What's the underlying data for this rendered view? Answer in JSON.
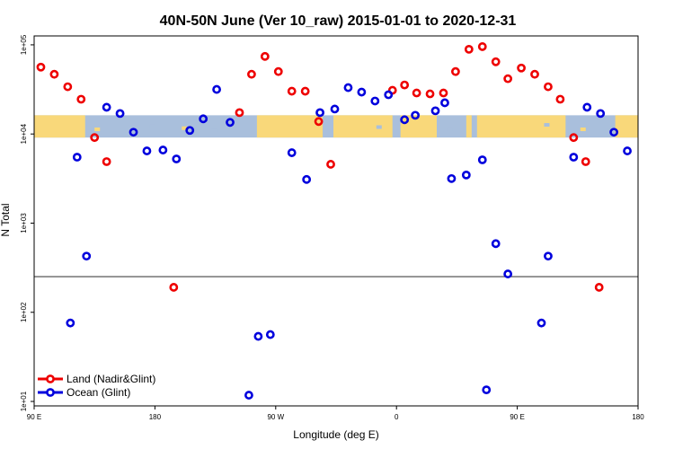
{
  "chart_data": {
    "type": "scatter",
    "title": "40N-50N June (Ver 10_raw)   2015-01-01 to 2020-12-31",
    "xlabel": "Longitude (deg E)",
    "ylabel": "N Total",
    "x_axis_note": "longitude running 90 E -> 180 -> 90 W -> 0 -> 90 E -> 180",
    "xlim": [
      90,
      540
    ],
    "xticks": [
      {
        "x": 90,
        "label": "90 E"
      },
      {
        "x": 180,
        "label": "180"
      },
      {
        "x": 270,
        "label": "90 W"
      },
      {
        "x": 360,
        "label": "0"
      },
      {
        "x": 450,
        "label": "90 E"
      },
      {
        "x": 540,
        "label": "180"
      }
    ],
    "y_scale": "log10",
    "ylim_log10": [
      0.95,
      5.1
    ],
    "yticks": [
      {
        "log10": 1,
        "label": "1e+01"
      },
      {
        "log10": 2,
        "label": "1e+02"
      },
      {
        "log10": 3,
        "label": "1e+03"
      },
      {
        "log10": 4,
        "label": "1e+04"
      },
      {
        "log10": 5,
        "label": "1e+05"
      }
    ],
    "reference_line_log10": 2.4,
    "map_strip_log10": [
      3.96,
      4.21
    ],
    "series": [
      {
        "name": "Land (Nadir&Glint)",
        "color": "#ee0000",
        "points": [
          [
            95,
            4.75
          ],
          [
            105,
            4.67
          ],
          [
            115,
            4.53
          ],
          [
            125,
            4.39
          ],
          [
            135,
            3.96
          ],
          [
            144,
            3.69
          ],
          [
            194,
            2.28
          ],
          [
            243,
            4.24
          ],
          [
            252,
            4.67
          ],
          [
            262,
            4.87
          ],
          [
            272,
            4.7
          ],
          [
            282,
            4.48
          ],
          [
            292,
            4.48
          ],
          [
            302,
            4.14
          ],
          [
            311,
            3.66
          ],
          [
            357,
            4.49
          ],
          [
            366,
            4.55
          ],
          [
            375,
            4.46
          ],
          [
            385,
            4.45
          ],
          [
            395,
            4.46
          ],
          [
            404,
            4.7
          ],
          [
            414,
            4.95
          ],
          [
            424,
            4.98
          ],
          [
            434,
            4.81
          ],
          [
            443,
            4.62
          ],
          [
            453,
            4.74
          ],
          [
            463,
            4.67
          ],
          [
            473,
            4.53
          ],
          [
            482,
            4.39
          ],
          [
            492,
            3.96
          ],
          [
            501,
            3.69
          ],
          [
            511,
            2.28
          ]
        ]
      },
      {
        "name": "Ocean (Glint)",
        "color": "#0000dd",
        "points": [
          [
            117,
            1.88
          ],
          [
            122,
            3.74
          ],
          [
            129,
            2.63
          ],
          [
            144,
            4.3
          ],
          [
            154,
            4.23
          ],
          [
            164,
            4.02
          ],
          [
            174,
            3.81
          ],
          [
            186,
            3.82
          ],
          [
            196,
            3.72
          ],
          [
            206,
            4.04
          ],
          [
            216,
            4.17
          ],
          [
            226,
            4.5
          ],
          [
            236,
            4.13
          ],
          [
            250,
            1.07
          ],
          [
            257,
            1.73
          ],
          [
            266,
            1.75
          ],
          [
            282,
            3.79
          ],
          [
            293,
            3.49
          ],
          [
            303,
            4.24
          ],
          [
            314,
            4.28
          ],
          [
            324,
            4.52
          ],
          [
            334,
            4.47
          ],
          [
            344,
            4.37
          ],
          [
            354,
            4.44
          ],
          [
            366,
            4.16
          ],
          [
            374,
            4.21
          ],
          [
            389,
            4.26
          ],
          [
            396,
            4.35
          ],
          [
            401,
            3.5
          ],
          [
            412,
            3.54
          ],
          [
            424,
            3.71
          ],
          [
            427,
            1.13
          ],
          [
            434,
            2.77
          ],
          [
            443,
            2.43
          ],
          [
            468,
            1.88
          ],
          [
            473,
            2.63
          ],
          [
            492,
            3.74
          ],
          [
            502,
            4.3
          ],
          [
            512,
            4.23
          ],
          [
            522,
            4.02
          ],
          [
            532,
            3.81
          ]
        ]
      }
    ],
    "legend": {
      "position": "bottom-left"
    }
  }
}
